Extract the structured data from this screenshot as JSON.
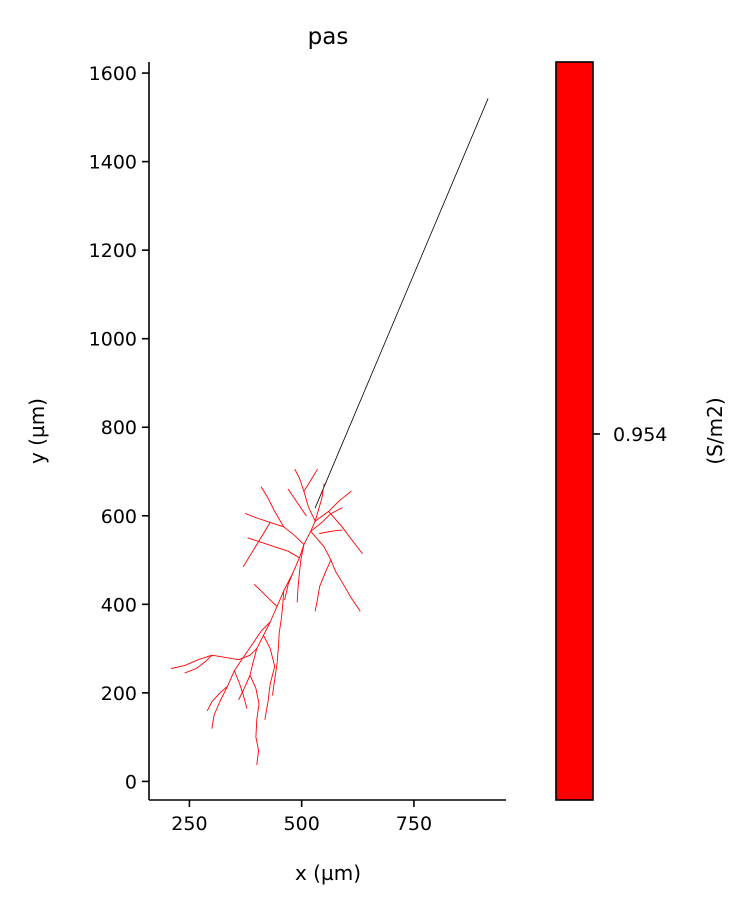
{
  "chart_data": [
    {
      "type": "line",
      "title": "pas",
      "xlabel": "x (µm)",
      "ylabel": "y (µm)",
      "xlim": [
        160,
        955
      ],
      "ylim": [
        -42,
        1625
      ],
      "xticks": [
        250,
        500,
        750
      ],
      "yticks": [
        0,
        200,
        400,
        600,
        800,
        1000,
        1200,
        1400,
        1600
      ],
      "grid": false,
      "series": [
        {
          "kind": "axon",
          "color": "#000000",
          "segments": [
            [
              [
                530,
                618
              ],
              [
                915,
                1542
              ]
            ]
          ]
        },
        {
          "kind": "dendrites",
          "color": "#ff0000",
          "segments": [
            [
              [
                530,
                588
              ],
              [
                520,
                565
              ],
              [
                505,
                535
              ],
              [
                495,
                505
              ],
              [
                480,
                470
              ],
              [
                460,
                430
              ],
              [
                445,
                395
              ],
              [
                430,
                360
              ],
              [
                415,
                330
              ],
              [
                400,
                300
              ]
            ],
            [
              [
                400,
                300
              ],
              [
                385,
                285
              ],
              [
                360,
                275
              ],
              [
                330,
                280
              ],
              [
                300,
                285
              ],
              [
                270,
                275
              ],
              [
                240,
                262
              ],
              [
                210,
                255
              ]
            ],
            [
              [
                300,
                285
              ],
              [
                285,
                270
              ],
              [
                265,
                255
              ],
              [
                240,
                245
              ]
            ],
            [
              [
                400,
                300
              ],
              [
                392,
                270
              ],
              [
                385,
                240
              ],
              [
                372,
                210
              ],
              [
                360,
                185
              ]
            ],
            [
              [
                385,
                240
              ],
              [
                398,
                210
              ],
              [
                405,
                175
              ],
              [
                400,
                140
              ],
              [
                398,
                100
              ],
              [
                404,
                70
              ],
              [
                400,
                38
              ]
            ],
            [
              [
                415,
                330
              ],
              [
                430,
                300
              ],
              [
                440,
                260
              ],
              [
                430,
                220
              ],
              [
                425,
                180
              ],
              [
                418,
                140
              ]
            ],
            [
              [
                430,
                360
              ],
              [
                410,
                340
              ],
              [
                390,
                310
              ],
              [
                370,
                280
              ],
              [
                350,
                250
              ],
              [
                335,
                215
              ],
              [
                320,
                185
              ],
              [
                305,
                150
              ],
              [
                300,
                120
              ]
            ],
            [
              [
                350,
                250
              ],
              [
                362,
                220
              ],
              [
                370,
                195
              ],
              [
                378,
                165
              ]
            ],
            [
              [
                335,
                215
              ],
              [
                318,
                200
              ],
              [
                300,
                180
              ],
              [
                290,
                160
              ]
            ],
            [
              [
                460,
                430
              ],
              [
                458,
                400
              ],
              [
                455,
                370
              ],
              [
                450,
                335
              ],
              [
                448,
                300
              ],
              [
                445,
                265
              ],
              [
                440,
                230
              ],
              [
                435,
                195
              ]
            ],
            [
              [
                505,
                535
              ],
              [
                498,
                500
              ],
              [
                495,
                470
              ],
              [
                492,
                440
              ],
              [
                490,
                405
              ]
            ],
            [
              [
                520,
                565
              ],
              [
                550,
                530
              ],
              [
                565,
                500
              ],
              [
                575,
                475
              ],
              [
                590,
                450
              ],
              [
                610,
                415
              ],
              [
                630,
                385
              ]
            ],
            [
              [
                565,
                500
              ],
              [
                552,
                470
              ],
              [
                540,
                440
              ],
              [
                535,
                410
              ],
              [
                530,
                385
              ]
            ],
            [
              [
                530,
                588
              ],
              [
                560,
                610
              ],
              [
                585,
                635
              ],
              [
                610,
                655
              ]
            ],
            [
              [
                560,
                610
              ],
              [
                590,
                575
              ],
              [
                612,
                545
              ],
              [
                635,
                515
              ]
            ],
            [
              [
                530,
                588
              ],
              [
                515,
                620
              ],
              [
                505,
                655
              ],
              [
                495,
                685
              ],
              [
                485,
                705
              ]
            ],
            [
              [
                505,
                655
              ],
              [
                520,
                680
              ],
              [
                535,
                705
              ]
            ],
            [
              [
                505,
                535
              ],
              [
                485,
                555
              ],
              [
                460,
                575
              ],
              [
                430,
                585
              ],
              [
                400,
                595
              ],
              [
                375,
                605
              ]
            ],
            [
              [
                460,
                575
              ],
              [
                440,
                610
              ],
              [
                425,
                640
              ],
              [
                410,
                665
              ]
            ],
            [
              [
                430,
                585
              ],
              [
                415,
                560
              ],
              [
                400,
                535
              ],
              [
                385,
                510
              ],
              [
                370,
                485
              ]
            ],
            [
              [
                495,
                505
              ],
              [
                470,
                520
              ],
              [
                440,
                530
              ],
              [
                410,
                540
              ],
              [
                380,
                550
              ]
            ],
            [
              [
                520,
                565
              ],
              [
                545,
                585
              ],
              [
                565,
                605
              ],
              [
                590,
                618
              ]
            ],
            [
              [
                530,
                588
              ],
              [
                545,
                640
              ],
              [
                550,
                672
              ]
            ],
            [
              [
                480,
                470
              ],
              [
                470,
                445
              ],
              [
                462,
                410
              ]
            ],
            [
              [
                445,
                395
              ],
              [
                430,
                410
              ],
              [
                415,
                425
              ],
              [
                395,
                445
              ]
            ],
            [
              [
                510,
                600
              ],
              [
                490,
                630
              ],
              [
                470,
                660
              ]
            ],
            [
              [
                540,
                560
              ],
              [
                565,
                565
              ],
              [
                590,
                568
              ]
            ]
          ]
        }
      ]
    },
    {
      "type": "heatmap",
      "kind": "colorbar",
      "ylabel": "(S/m2)",
      "tick_labels": [
        "0.954"
      ],
      "color": "#ff0000"
    }
  ]
}
